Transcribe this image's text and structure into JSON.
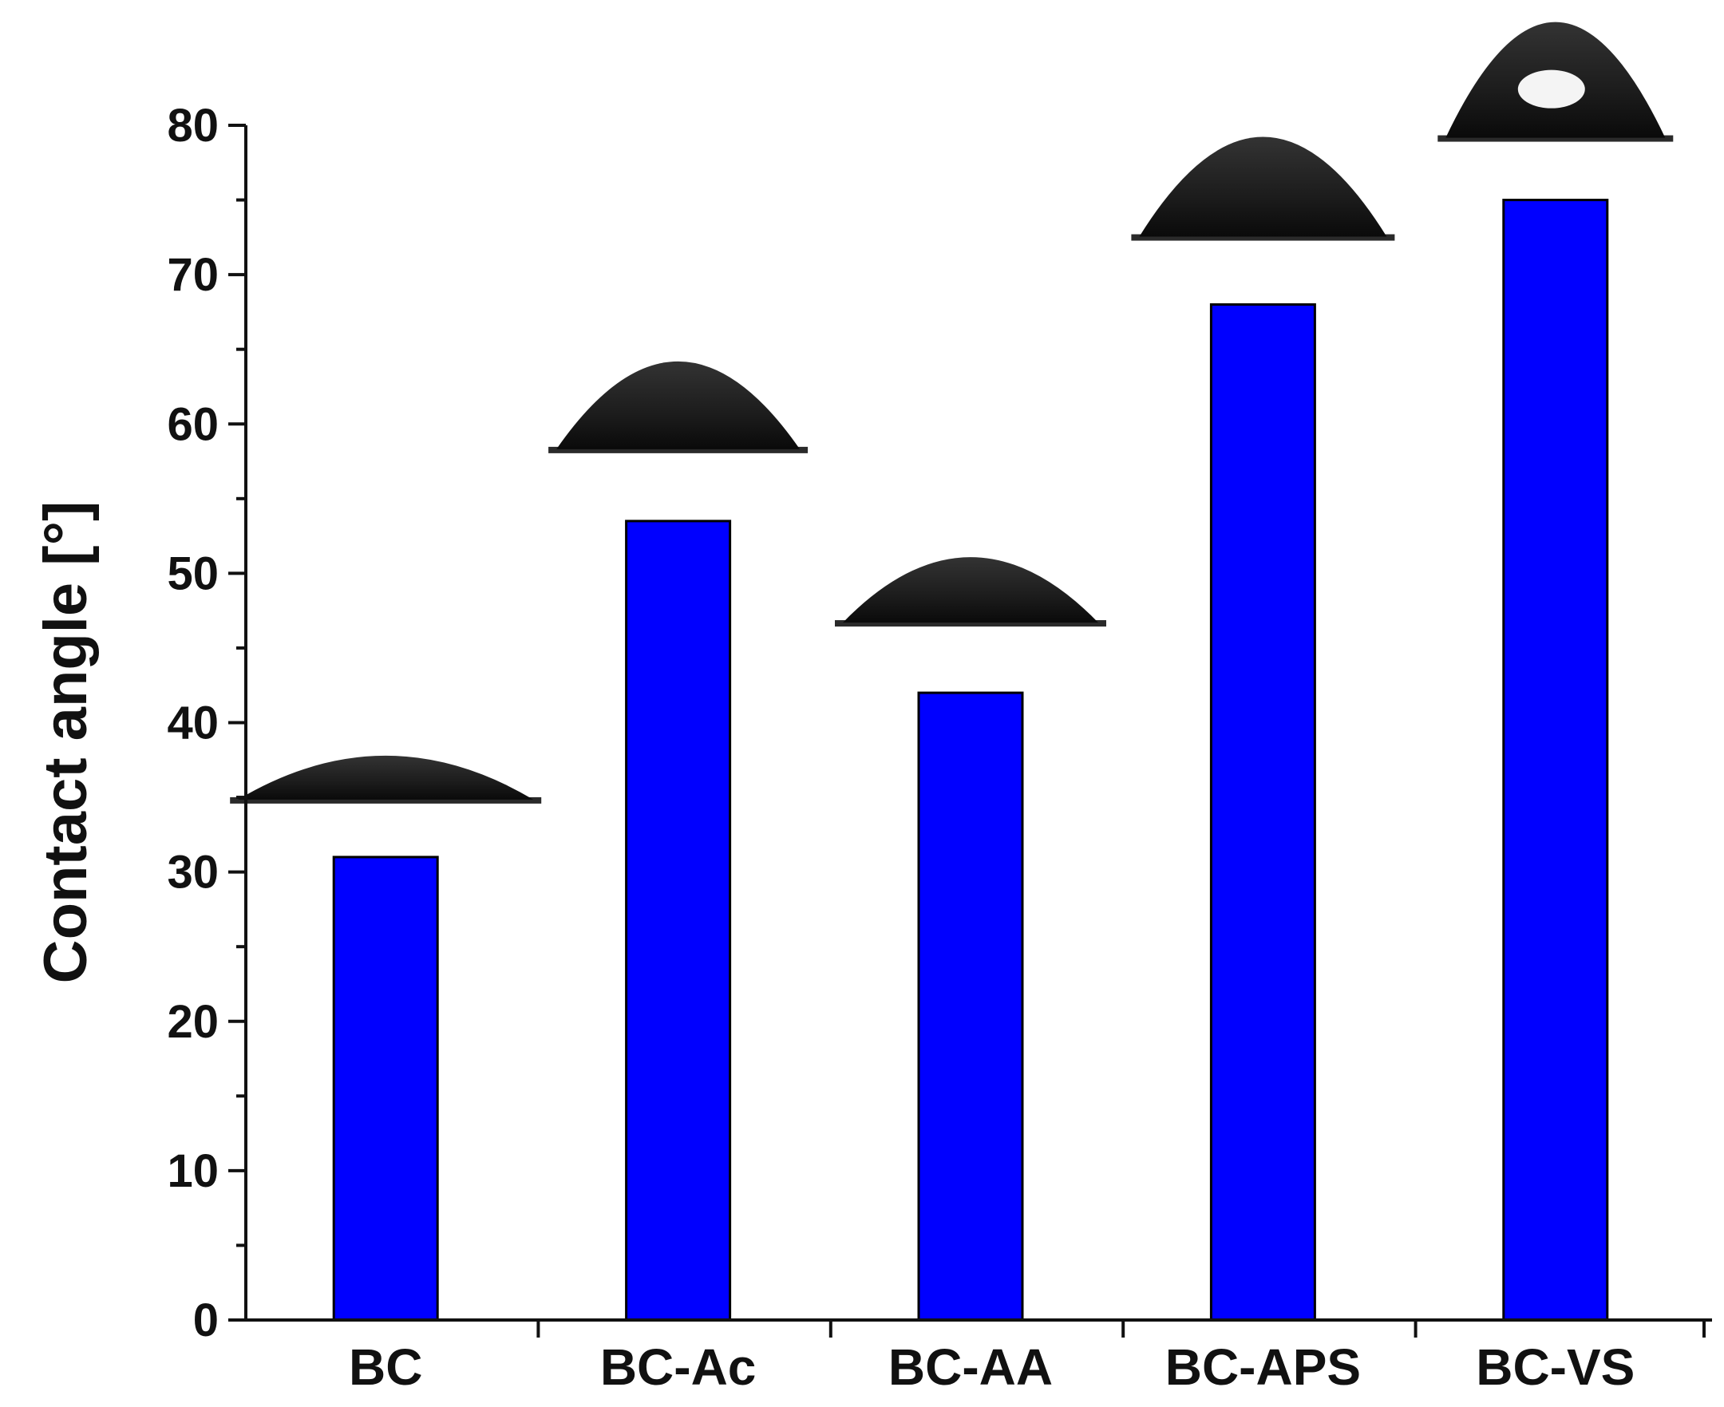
{
  "chart_data": {
    "type": "bar",
    "title": "",
    "xlabel": "",
    "ylabel": "Contact angle [°]",
    "categories": [
      "BC",
      "BC-Ac",
      "BC-AA",
      "BC-APS",
      "BC-VS"
    ],
    "values": [
      31,
      53.5,
      42,
      68,
      75
    ],
    "ylim": [
      0,
      80
    ],
    "yticks": [
      0,
      10,
      20,
      30,
      40,
      50,
      60,
      70,
      80
    ],
    "yticks_minor_step": 5,
    "bar_color": "#0000ff",
    "bar_edge_color": "#000000",
    "grid": false,
    "legend": "none",
    "insets": [
      {
        "category": "BC",
        "depicts": "water-droplet-image",
        "highlight": false
      },
      {
        "category": "BC-Ac",
        "depicts": "water-droplet-image",
        "highlight": false
      },
      {
        "category": "BC-AA",
        "depicts": "water-droplet-image",
        "highlight": false
      },
      {
        "category": "BC-APS",
        "depicts": "water-droplet-image",
        "highlight": false
      },
      {
        "category": "BC-VS",
        "depicts": "water-droplet-image",
        "highlight": true
      }
    ]
  }
}
